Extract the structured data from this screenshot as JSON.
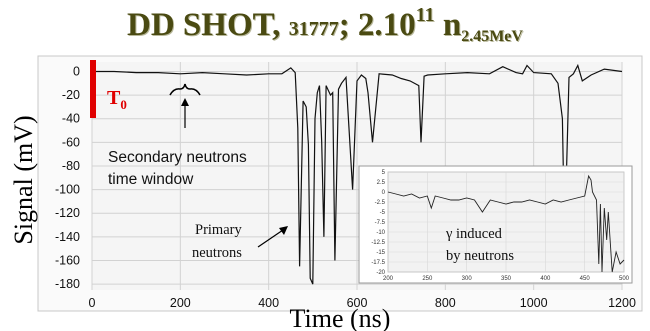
{
  "title": {
    "main": "DD SHOT,",
    "shot": "31777",
    "sep": "; 2.10",
    "exponent": "11",
    "particle": " n",
    "subscript": "2.45MeV"
  },
  "colors": {
    "title": "#4a4a12",
    "t0_marker": "#e00000",
    "trace": "#111111",
    "plot_bg": "#f5f5f5"
  },
  "chart_data": {
    "type": "line",
    "title": "",
    "xlabel": "Time (ns)",
    "ylabel": "Signal (mV)",
    "xlim": [
      0,
      1200
    ],
    "ylim": [
      -185,
      8
    ],
    "xticks": [
      0,
      200,
      400,
      600,
      800,
      1000,
      1200
    ],
    "yticks": [
      0,
      -20,
      -40,
      -60,
      -80,
      -100,
      -120,
      -140,
      -160,
      -180
    ],
    "grid": true,
    "series": [
      {
        "x": [
          0,
          50,
          100,
          150,
          200,
          250,
          300,
          350,
          400,
          430,
          450,
          460,
          466,
          470,
          478,
          485,
          490,
          494,
          500,
          505,
          510,
          515,
          520,
          525,
          530,
          540,
          545,
          550,
          558,
          565,
          575,
          590,
          600,
          610,
          620,
          625,
          635,
          650,
          680,
          700,
          720,
          740,
          745,
          752,
          760,
          800,
          850,
          900,
          930,
          960,
          975,
          985,
          1000,
          1040,
          1055,
          1065,
          1070,
          1080,
          1090,
          1100,
          1110,
          1130,
          1160,
          1200
        ],
        "y": [
          0,
          0,
          -1,
          -1,
          -2,
          -1,
          -2,
          -3,
          -2,
          -2,
          3,
          -1,
          -48,
          -165,
          -25,
          -30,
          -62,
          -175,
          -180,
          -40,
          -18,
          -12,
          -60,
          -140,
          -12,
          -20,
          -18,
          -160,
          -15,
          -10,
          -5,
          -100,
          -8,
          -3,
          -6,
          -18,
          -60,
          -2,
          -3,
          -6,
          -8,
          -12,
          -60,
          -4,
          -3,
          -2,
          -1,
          -2,
          4,
          -1,
          -2,
          5,
          -1,
          -2,
          -10,
          -40,
          -145,
          -5,
          -2,
          5,
          -8,
          -3,
          2,
          0
        ]
      }
    ],
    "annotations": [
      {
        "text_lines": [
          "Secondary neutrons",
          "time window"
        ],
        "x": 200
      },
      {
        "text_lines": [
          "Primary",
          "neutrons"
        ]
      },
      {
        "text": "T",
        "subscript": "0",
        "x": 0
      }
    ],
    "inset": {
      "type": "line",
      "xlim": [
        200,
        500
      ],
      "ylim": [
        -20,
        5
      ],
      "xticks": [
        200,
        250,
        300,
        350,
        400,
        450,
        500
      ],
      "yticks": [
        5,
        2.5,
        0,
        -2.5,
        -5,
        -7.5,
        -10,
        -12.5,
        -15,
        -17.5,
        -20
      ],
      "label_lines": [
        "γ induced",
        "by neutrons"
      ],
      "x": [
        200,
        210,
        220,
        230,
        240,
        250,
        255,
        260,
        270,
        280,
        290,
        300,
        310,
        320,
        330,
        340,
        350,
        360,
        370,
        380,
        390,
        400,
        410,
        420,
        430,
        440,
        450,
        455,
        458,
        460,
        465,
        468,
        470,
        472,
        475,
        478,
        480,
        485,
        490,
        495,
        500
      ],
      "y": [
        0,
        -0.5,
        -1,
        -0.5,
        -1.5,
        -1,
        -4,
        -1,
        -1.5,
        -2,
        -2,
        -1.5,
        -2,
        -5,
        -2,
        -2.5,
        -3,
        -2.5,
        -2.5,
        -2,
        -2.5,
        -3,
        -2,
        -2.5,
        -2,
        -1.5,
        -1,
        4,
        3,
        0,
        -2,
        -18,
        -3,
        -20,
        -4,
        -12,
        -5,
        -20,
        -15,
        -18,
        -17
      ]
    }
  }
}
